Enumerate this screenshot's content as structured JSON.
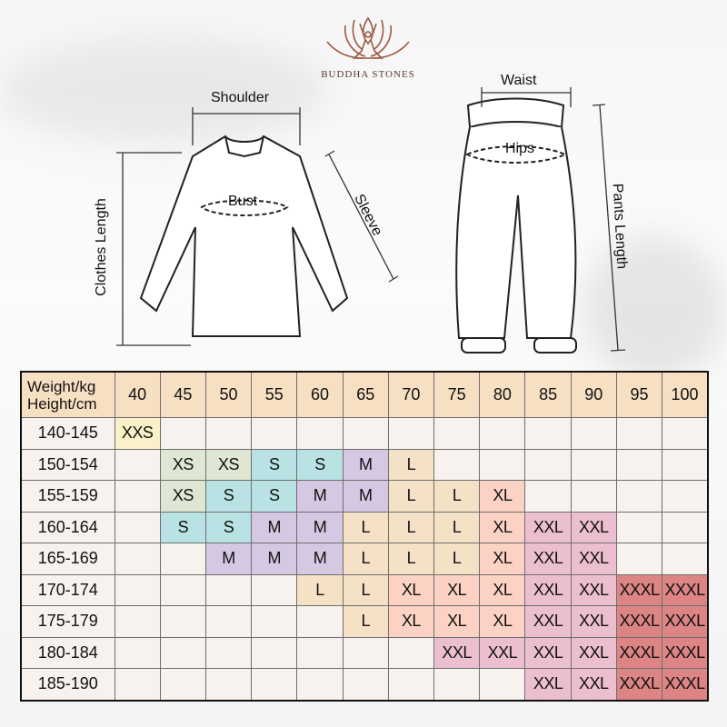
{
  "brand": {
    "name": "BUDDHA STONES",
    "logo_icon": "lotus-meditation-icon"
  },
  "top_diagram": {
    "labels": {
      "shoulder": "Shoulder",
      "bust": "Bust",
      "sleeve": "Sleeve",
      "clothes_length": "Clothes Length"
    }
  },
  "pants_diagram": {
    "labels": {
      "waist": "Waist",
      "hips": "Hips",
      "pants_length": "Pants Length"
    }
  },
  "size_chart": {
    "corner_top": "Weight/kg",
    "corner_bottom": "Height/cm",
    "weights": [
      "40",
      "45",
      "50",
      "55",
      "60",
      "65",
      "70",
      "75",
      "80",
      "85",
      "90",
      "95",
      "100"
    ],
    "size_colors": {
      "XXS": "#fbf1c8",
      "XS": "#dfe7d4",
      "S": "#b9e2e4",
      "M": "#d5c8e2",
      "L": "#f5e1c6",
      "XL": "#fbd2c4",
      "XXL": "#ecbfd0",
      "XXXL": "#dd8585"
    },
    "header_color": "#f7dfc2",
    "empty_color": "#f7f2ee",
    "rows": [
      {
        "height": "140-145",
        "sizes": [
          "XXS",
          "",
          "",
          "",
          "",
          "",
          "",
          "",
          "",
          "",
          "",
          "",
          ""
        ]
      },
      {
        "height": "150-154",
        "sizes": [
          "",
          "XS",
          "XS",
          "S",
          "S",
          "M",
          "L",
          "",
          "",
          "",
          "",
          "",
          ""
        ]
      },
      {
        "height": "155-159",
        "sizes": [
          "",
          "XS",
          "S",
          "S",
          "M",
          "M",
          "L",
          "L",
          "XL",
          "",
          "",
          "",
          ""
        ]
      },
      {
        "height": "160-164",
        "sizes": [
          "",
          "S",
          "S",
          "M",
          "M",
          "L",
          "L",
          "L",
          "XL",
          "XXL",
          "XXL",
          "",
          ""
        ]
      },
      {
        "height": "165-169",
        "sizes": [
          "",
          "",
          "M",
          "M",
          "M",
          "L",
          "L",
          "L",
          "XL",
          "XXL",
          "XXL",
          "",
          ""
        ]
      },
      {
        "height": "170-174",
        "sizes": [
          "",
          "",
          "",
          "",
          "L",
          "L",
          "XL",
          "XL",
          "XL",
          "XXL",
          "XXL",
          "XXXL",
          "XXXL"
        ]
      },
      {
        "height": "175-179",
        "sizes": [
          "",
          "",
          "",
          "",
          "",
          "L",
          "XL",
          "XL",
          "XL",
          "XXL",
          "XXL",
          "XXXL",
          "XXXL"
        ]
      },
      {
        "height": "180-184",
        "sizes": [
          "",
          "",
          "",
          "",
          "",
          "",
          "",
          "XXL",
          "XXL",
          "XXL",
          "XXL",
          "XXXL",
          "XXXL"
        ]
      },
      {
        "height": "185-190",
        "sizes": [
          "",
          "",
          "",
          "",
          "",
          "",
          "",
          "",
          "",
          "XXL",
          "XXL",
          "XXXL",
          "XXXL"
        ]
      }
    ]
  }
}
